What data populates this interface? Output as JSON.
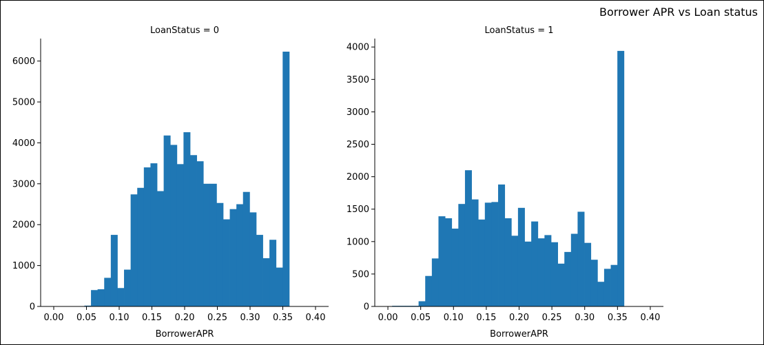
{
  "suptitle": "Borrower APR vs Loan status",
  "chart_data": [
    {
      "type": "histogram",
      "title": "LoanStatus = 0",
      "xlabel": "BorrowerAPR",
      "ylabel": "",
      "bar_color": "#1f77b4",
      "xlim": [
        -0.02,
        0.42
      ],
      "ylim": [
        0,
        6550
      ],
      "xticks": [
        0.0,
        0.05,
        0.1,
        0.15,
        0.2,
        0.25,
        0.3,
        0.35,
        0.4
      ],
      "xtick_labels": [
        "0.00",
        "0.05",
        "0.10",
        "0.15",
        "0.20",
        "0.25",
        "0.30",
        "0.35",
        "0.40"
      ],
      "yticks": [
        0,
        1000,
        2000,
        3000,
        4000,
        5000,
        6000
      ],
      "ytick_labels": [
        "0",
        "1000",
        "2000",
        "3000",
        "4000",
        "5000",
        "6000"
      ],
      "bin_start": 0.0064,
      "bin_width": 0.0101,
      "values": [
        0,
        0,
        0,
        0,
        20,
        400,
        420,
        700,
        1750,
        450,
        900,
        2740,
        2900,
        3400,
        3500,
        2820,
        4180,
        3950,
        3480,
        4260,
        3700,
        3550,
        3000,
        3000,
        2530,
        2130,
        2380,
        2500,
        2800,
        2300,
        1750,
        1180,
        1630,
        950,
        6230
      ]
    },
    {
      "type": "histogram",
      "title": "LoanStatus = 1",
      "xlabel": "BorrowerAPR",
      "ylabel": "",
      "bar_color": "#1f77b4",
      "xlim": [
        -0.02,
        0.42
      ],
      "ylim": [
        0,
        4130
      ],
      "xticks": [
        0.0,
        0.05,
        0.1,
        0.15,
        0.2,
        0.25,
        0.3,
        0.35,
        0.4
      ],
      "xtick_labels": [
        "0.00",
        "0.05",
        "0.10",
        "0.15",
        "0.20",
        "0.25",
        "0.30",
        "0.35",
        "0.40"
      ],
      "yticks": [
        0,
        500,
        1000,
        1500,
        2000,
        2500,
        3000,
        3500,
        4000
      ],
      "ytick_labels": [
        "0",
        "500",
        "1000",
        "1500",
        "2000",
        "2500",
        "3000",
        "3500",
        "4000"
      ],
      "bin_start": 0.0064,
      "bin_width": 0.0101,
      "values": [
        10,
        10,
        10,
        10,
        80,
        470,
        740,
        1390,
        1360,
        1200,
        1580,
        2100,
        1650,
        1340,
        1600,
        1610,
        1880,
        1360,
        1090,
        1520,
        1000,
        1310,
        1050,
        1100,
        990,
        660,
        840,
        1120,
        1460,
        980,
        720,
        380,
        580,
        640,
        3940
      ]
    }
  ]
}
